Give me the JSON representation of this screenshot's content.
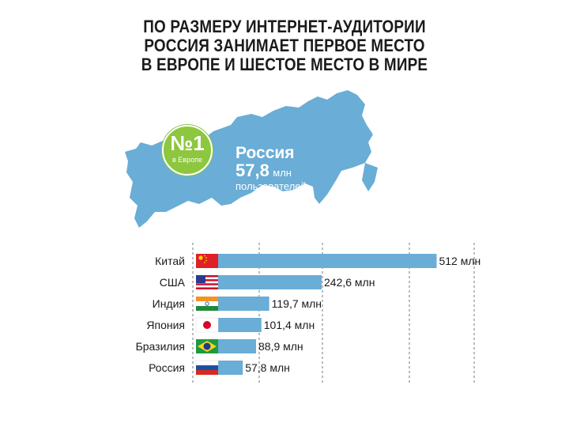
{
  "title_lines": [
    "ПО РАЗМЕРУ ИНТЕРНЕТ-АУДИТОРИИ",
    "РОССИЯ ЗАНИМАЕТ ПЕРВОЕ МЕСТО",
    "В ЕВРОПЕ И ШЕСТОЕ МЕСТО В МИРЕ"
  ],
  "badge": {
    "number": "№1",
    "text": "в Европе"
  },
  "callout": {
    "country": "Россия",
    "value": "57,8",
    "unit": "млн",
    "users": "пользователей"
  },
  "colors": {
    "bar": "#6aadd6",
    "map": "#6aadd6",
    "badge": "#8dc63f",
    "grid": "#7a7a7a"
  },
  "chart_data": {
    "type": "bar",
    "orientation": "horizontal",
    "categories": [
      "Китай",
      "США",
      "Индия",
      "Япония",
      "Бразилия",
      "Россия"
    ],
    "values": [
      512,
      242.6,
      119.7,
      101.4,
      88.9,
      57.8
    ],
    "value_labels": [
      "512 млн",
      "242,6 млн",
      "119,7 млн",
      "101,4 млн",
      "88,9 млн",
      "57,8 млн"
    ],
    "flags": [
      "china-flag-icon",
      "usa-flag-icon",
      "india-flag-icon",
      "japan-flag-icon",
      "brazil-flag-icon",
      "russia-flag-icon"
    ],
    "xlim": [
      0,
      600
    ],
    "grid": true,
    "unit": "млн"
  }
}
